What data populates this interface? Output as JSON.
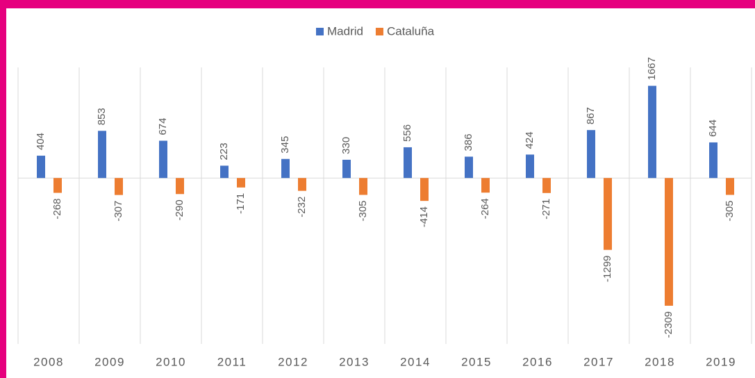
{
  "chart_data": {
    "type": "bar",
    "categories": [
      "2008",
      "2009",
      "2010",
      "2011",
      "2012",
      "2013",
      "2014",
      "2015",
      "2016",
      "2017",
      "2018",
      "2019"
    ],
    "series": [
      {
        "name": "Madrid",
        "color": "#4472c4",
        "values": [
          404,
          853,
          674,
          223,
          345,
          330,
          556,
          386,
          424,
          867,
          1667,
          644
        ]
      },
      {
        "name": "Cataluña",
        "color": "#ed7d31",
        "values": [
          -268,
          -307,
          -290,
          -171,
          -232,
          -305,
          -414,
          -264,
          -271,
          -1299,
          -2309,
          -305
        ]
      }
    ],
    "ylim": [
      -3000,
      2000
    ],
    "legend": "top"
  }
}
